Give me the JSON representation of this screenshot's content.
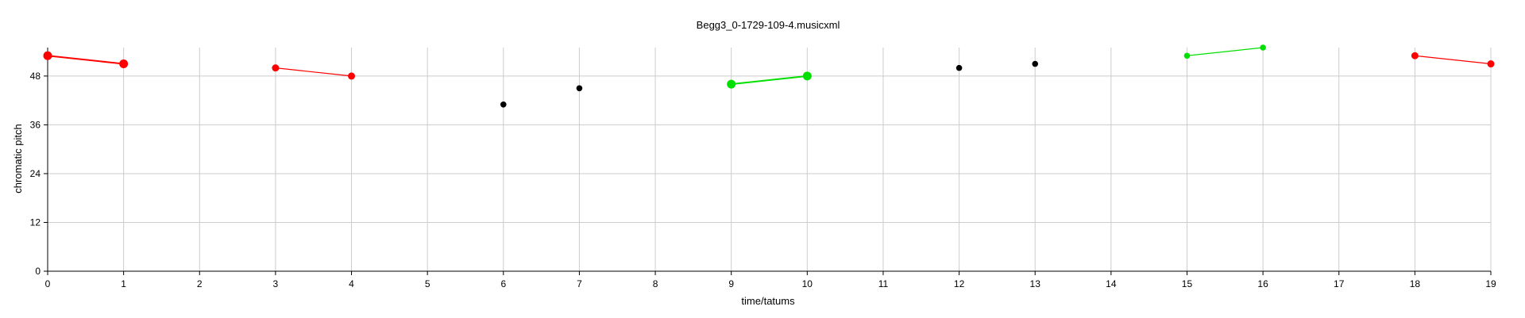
{
  "chart_data": {
    "type": "scatter",
    "title": "Begg3_0-1729-109-4.musicxml",
    "xlabel": "time/tatums",
    "ylabel": "chromatic pitch",
    "xlim": [
      0,
      19
    ],
    "ylim": [
      0,
      55
    ],
    "xticks": [
      0,
      1,
      2,
      3,
      4,
      5,
      6,
      7,
      8,
      9,
      10,
      11,
      12,
      13,
      14,
      15,
      16,
      17,
      18,
      19
    ],
    "yticks": [
      0,
      12,
      24,
      36,
      48
    ],
    "grid": true,
    "colors": {
      "red": "#ff0000",
      "green": "#00e000",
      "black": "#000000"
    },
    "segments": [
      {
        "color": "red",
        "size": "large",
        "points": [
          [
            0,
            53
          ],
          [
            1,
            51
          ]
        ]
      },
      {
        "color": "red",
        "size": "medium",
        "points": [
          [
            3,
            50
          ],
          [
            4,
            48
          ]
        ]
      },
      {
        "color": "green",
        "size": "large",
        "points": [
          [
            9,
            46
          ],
          [
            10,
            48
          ]
        ]
      },
      {
        "color": "green",
        "size": "small",
        "points": [
          [
            15,
            53
          ],
          [
            16,
            55
          ]
        ]
      },
      {
        "color": "red",
        "size": "medium",
        "points": [
          [
            18,
            53
          ],
          [
            19,
            51
          ]
        ]
      }
    ],
    "points": [
      {
        "x": 6,
        "y": 41,
        "color": "black"
      },
      {
        "x": 7,
        "y": 45,
        "color": "black"
      },
      {
        "x": 12,
        "y": 50,
        "color": "black"
      },
      {
        "x": 13,
        "y": 51,
        "color": "black"
      }
    ]
  }
}
